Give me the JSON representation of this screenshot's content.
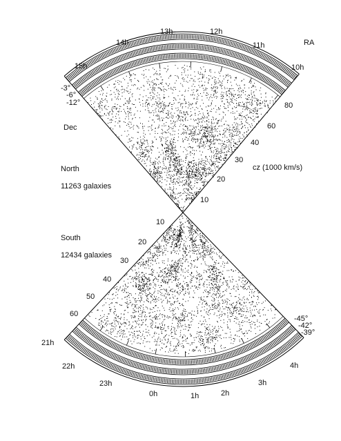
{
  "header": {
    "ra": "RA",
    "dec": "Dec",
    "cz_label": "cz (1000 km/s)"
  },
  "north": {
    "title": "North",
    "count": "11263 galaxies",
    "hours": [
      "10h",
      "11h",
      "12h",
      "13h",
      "14h",
      "15h"
    ],
    "decs": [
      "-3°",
      "-6°",
      "-12°"
    ],
    "distances": [
      "80",
      "60",
      "40",
      "30",
      "20",
      "10"
    ]
  },
  "south": {
    "title": "South",
    "count": "12434 galaxies",
    "hours": [
      "21h",
      "22h",
      "23h",
      "0h",
      "1h",
      "2h",
      "3h",
      "4h"
    ],
    "decs": [
      "-45°",
      "-42°",
      "-39°"
    ],
    "distances": [
      "10",
      "20",
      "30",
      "40",
      "50",
      "60"
    ]
  }
}
